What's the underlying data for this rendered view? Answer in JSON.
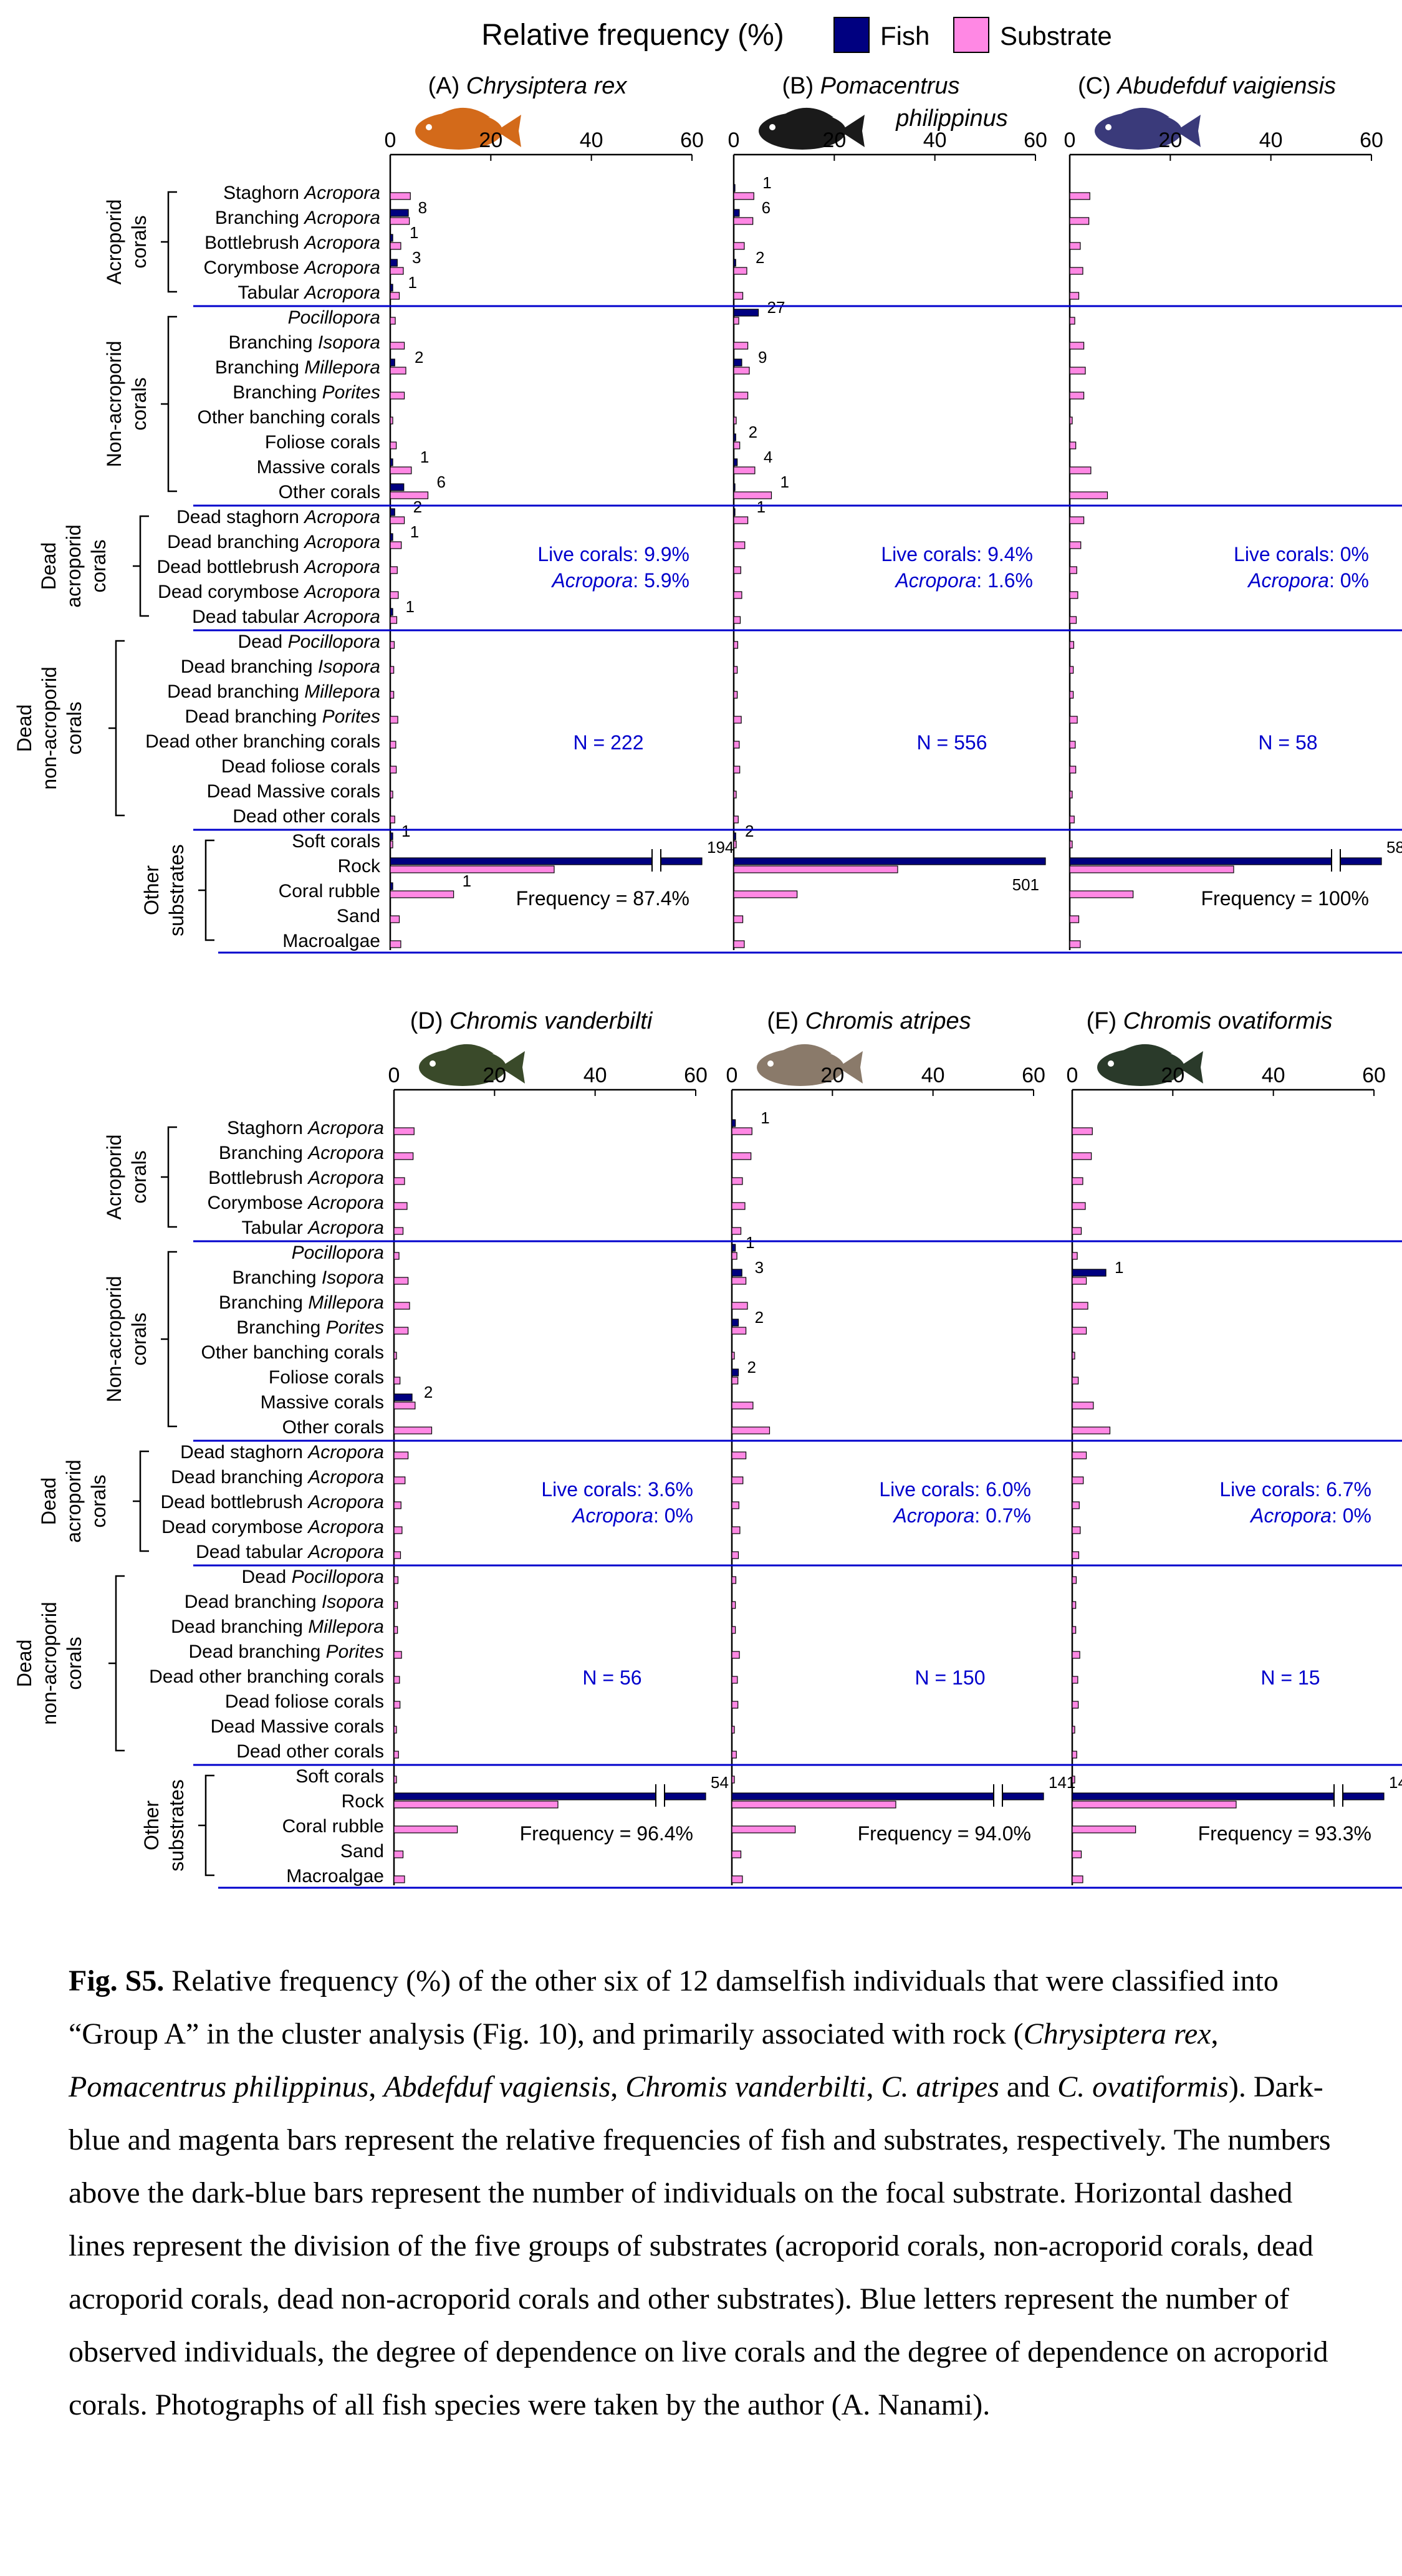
{
  "legend": {
    "title": "Relative frequency (%)",
    "fish_label": "Fish",
    "substrate_label": "Substrate",
    "colors": {
      "fish": "#000080",
      "substrate": "#FF88E4"
    }
  },
  "axis": {
    "ticks": [
      "0",
      "20",
      "40",
      "60"
    ]
  },
  "substrates": [
    {
      "g": 0,
      "p": [
        {
          "t": "Staghorn "
        },
        {
          "t": "Acropora",
          "i": true
        }
      ]
    },
    {
      "g": 0,
      "p": [
        {
          "t": "Branching "
        },
        {
          "t": "Acropora",
          "i": true
        }
      ]
    },
    {
      "g": 0,
      "p": [
        {
          "t": "Bottlebrush "
        },
        {
          "t": "Acropora",
          "i": true
        }
      ]
    },
    {
      "g": 0,
      "p": [
        {
          "t": "Corymbose "
        },
        {
          "t": "Acropora",
          "i": true
        }
      ]
    },
    {
      "g": 0,
      "p": [
        {
          "t": "Tabular "
        },
        {
          "t": "Acropora",
          "i": true
        }
      ]
    },
    {
      "g": 1,
      "p": [
        {
          "t": "Pocillopora",
          "i": true
        }
      ]
    },
    {
      "g": 1,
      "p": [
        {
          "t": "Branching "
        },
        {
          "t": "Isopora",
          "i": true
        }
      ]
    },
    {
      "g": 1,
      "p": [
        {
          "t": "Branching "
        },
        {
          "t": "Millepora",
          "i": true
        }
      ]
    },
    {
      "g": 1,
      "p": [
        {
          "t": "Branching "
        },
        {
          "t": "Porites",
          "i": true
        }
      ]
    },
    {
      "g": 1,
      "p": [
        {
          "t": "Other banching corals"
        }
      ]
    },
    {
      "g": 1,
      "p": [
        {
          "t": "Foliose corals"
        }
      ]
    },
    {
      "g": 1,
      "p": [
        {
          "t": "Massive corals"
        }
      ]
    },
    {
      "g": 1,
      "p": [
        {
          "t": "Other corals"
        }
      ]
    },
    {
      "g": 2,
      "p": [
        {
          "t": "Dead staghorn "
        },
        {
          "t": "Acropora",
          "i": true
        }
      ]
    },
    {
      "g": 2,
      "p": [
        {
          "t": "Dead branching "
        },
        {
          "t": "Acropora",
          "i": true
        }
      ]
    },
    {
      "g": 2,
      "p": [
        {
          "t": "Dead bottlebrush "
        },
        {
          "t": "Acropora",
          "i": true
        }
      ]
    },
    {
      "g": 2,
      "p": [
        {
          "t": "Dead corymbose "
        },
        {
          "t": "Acropora",
          "i": true
        }
      ]
    },
    {
      "g": 2,
      "p": [
        {
          "t": "Dead tabular "
        },
        {
          "t": "Acropora",
          "i": true
        }
      ]
    },
    {
      "g": 3,
      "p": [
        {
          "t": "Dead "
        },
        {
          "t": "Pocillopora",
          "i": true
        }
      ]
    },
    {
      "g": 3,
      "p": [
        {
          "t": "Dead branching "
        },
        {
          "t": "Isopora",
          "i": true
        }
      ]
    },
    {
      "g": 3,
      "p": [
        {
          "t": "Dead branching "
        },
        {
          "t": "Millepora",
          "i": true
        }
      ]
    },
    {
      "g": 3,
      "p": [
        {
          "t": "Dead branching "
        },
        {
          "t": "Porites",
          "i": true
        }
      ]
    },
    {
      "g": 3,
      "p": [
        {
          "t": "Dead other branching corals"
        }
      ]
    },
    {
      "g": 3,
      "p": [
        {
          "t": "Dead foliose corals"
        }
      ]
    },
    {
      "g": 3,
      "p": [
        {
          "t": "Dead Massive corals"
        }
      ]
    },
    {
      "g": 3,
      "p": [
        {
          "t": "Dead other corals"
        }
      ]
    },
    {
      "g": 4,
      "p": [
        {
          "t": "Soft corals"
        }
      ]
    },
    {
      "g": 4,
      "p": [
        {
          "t": "Rock"
        }
      ]
    },
    {
      "g": 4,
      "p": [
        {
          "t": "Coral rubble"
        }
      ]
    },
    {
      "g": 4,
      "p": [
        {
          "t": "Sand"
        }
      ]
    },
    {
      "g": 4,
      "p": [
        {
          "t": "Macroalgae"
        }
      ]
    }
  ],
  "groups_top": [
    {
      "lines": [
        "Acroporid",
        "corals"
      ]
    },
    {
      "lines": [
        "Non-acroporid",
        "corals"
      ]
    },
    {
      "lines": [
        "Dead",
        "acroporid",
        "corals"
      ]
    },
    {
      "lines": [
        "Dead",
        "non-acroporid",
        "corals"
      ]
    },
    {
      "lines": [
        "Other",
        "substrates"
      ]
    }
  ],
  "groups_bottom": [
    {
      "lines": [
        "Acroporid",
        "corals"
      ]
    },
    {
      "lines": [
        "Non-acroporid",
        "corals"
      ]
    },
    {
      "lines": [
        "Dead",
        "acroporid",
        "corals"
      ]
    },
    {
      "lines": [
        "Dead",
        "non-acroporid",
        "corals"
      ]
    },
    {
      "lines": [
        "Other",
        "substrates"
      ]
    }
  ],
  "chart_data": [
    {
      "type": "bar",
      "title_letter": "(A)",
      "title_lines": [
        "Chrysiptera rex"
      ],
      "fish_color": "#d36a1a",
      "stats": {
        "live": "Live corals: 9.9%",
        "acropora_pct": ": 5.9%",
        "n": "N = 222",
        "frequency": "Frequency = 87.4%"
      },
      "xlim": [
        0,
        60
      ],
      "broken_axis": true,
      "fish": [
        0,
        3.6,
        0.5,
        1.4,
        0.5,
        0,
        0,
        0.9,
        0,
        0,
        0,
        0.5,
        2.7,
        0.9,
        0.5,
        0,
        0,
        0.5,
        0,
        0,
        0,
        0,
        0,
        0,
        0,
        0,
        0.5,
        87.4,
        0.5,
        0,
        0
      ],
      "substrate": [
        4.0,
        3.8,
        2.1,
        2.6,
        1.8,
        1.0,
        2.8,
        3.1,
        2.8,
        0.5,
        1.2,
        4.2,
        7.5,
        2.8,
        2.2,
        1.4,
        1.6,
        1.3,
        0.8,
        0.7,
        0.7,
        1.5,
        1.1,
        1.2,
        0.5,
        0.9,
        0.5,
        32.6,
        12.6,
        1.8,
        2.1
      ],
      "counts": [
        "",
        "8",
        "1",
        "3",
        "1",
        "",
        "",
        "2",
        "",
        "",
        "",
        "1",
        "6",
        "2",
        "1",
        "",
        "",
        "1",
        "",
        "",
        "",
        "",
        "",
        "",
        "",
        "",
        "1",
        "194",
        "1",
        "",
        ""
      ]
    },
    {
      "type": "bar",
      "title_letter": "(B)",
      "title_lines": [
        "Pomacentrus",
        "philippinus"
      ],
      "fish_color": "#1a1a1a",
      "stats": {
        "live": "Live corals: 9.4%",
        "acropora_pct": ": 1.6%",
        "n": "N = 556",
        "frequency": ""
      },
      "xlim": [
        0,
        60
      ],
      "broken_axis": false,
      "fish": [
        0.2,
        1.1,
        0,
        0.4,
        0,
        4.9,
        0,
        1.6,
        0,
        0,
        0.4,
        0.7,
        0.2,
        0.2,
        0,
        0,
        0,
        0,
        0,
        0,
        0,
        0,
        0,
        0,
        0,
        0,
        0.4,
        90.1,
        0,
        0,
        0
      ],
      "substrate": [
        4.0,
        3.8,
        2.1,
        2.6,
        1.8,
        1.0,
        2.8,
        3.1,
        2.8,
        0.5,
        1.2,
        4.2,
        7.5,
        2.8,
        2.2,
        1.4,
        1.6,
        1.3,
        0.8,
        0.7,
        0.7,
        1.5,
        1.1,
        1.2,
        0.5,
        0.9,
        0.5,
        32.6,
        12.6,
        1.8,
        2.1
      ],
      "counts": [
        "1",
        "6",
        "",
        "2",
        "",
        "27",
        "",
        "9",
        "",
        "",
        "2",
        "4",
        "1",
        "1",
        "",
        "",
        "",
        "",
        "",
        "",
        "",
        "",
        "",
        "",
        "",
        "",
        "2",
        "501",
        "",
        "",
        ""
      ]
    },
    {
      "type": "bar",
      "title_letter": "(C)",
      "title_lines": [
        "Abudefduf vaigiensis"
      ],
      "fish_color": "#3a3a7a",
      "stats": {
        "live": "Live corals: 0%",
        "acropora_pct": ": 0%",
        "n": "N = 58",
        "frequency": "Frequency = 100%"
      },
      "xlim": [
        0,
        60
      ],
      "broken_axis": true,
      "fish": [
        0,
        0,
        0,
        0,
        0,
        0,
        0,
        0,
        0,
        0,
        0,
        0,
        0,
        0,
        0,
        0,
        0,
        0,
        0,
        0,
        0,
        0,
        0,
        0,
        0,
        0,
        0,
        100,
        0,
        0,
        0
      ],
      "substrate": [
        4.0,
        3.8,
        2.1,
        2.6,
        1.8,
        1.0,
        2.8,
        3.1,
        2.8,
        0.5,
        1.2,
        4.2,
        7.5,
        2.8,
        2.2,
        1.4,
        1.6,
        1.3,
        0.8,
        0.7,
        0.7,
        1.5,
        1.1,
        1.2,
        0.5,
        0.9,
        0.5,
        32.6,
        12.6,
        1.8,
        2.1
      ],
      "counts": [
        "",
        "",
        "",
        "",
        "",
        "",
        "",
        "",
        "",
        "",
        "",
        "",
        "",
        "",
        "",
        "",
        "",
        "",
        "",
        "",
        "",
        "",
        "",
        "",
        "",
        "",
        "",
        "58",
        "",
        "",
        ""
      ]
    },
    {
      "type": "bar",
      "title_letter": "(D)",
      "title_lines": [
        "Chromis vanderbilti"
      ],
      "fish_color": "#3a4a2a",
      "stats": {
        "live": "Live corals: 3.6%",
        "acropora_pct": ": 0%",
        "n": "N = 56",
        "frequency": "Frequency = 96.4%"
      },
      "xlim": [
        0,
        60
      ],
      "broken_axis": true,
      "fish": [
        0,
        0,
        0,
        0,
        0,
        0,
        0,
        0,
        0,
        0,
        0,
        3.6,
        0,
        0,
        0,
        0,
        0,
        0,
        0,
        0,
        0,
        0,
        0,
        0,
        0,
        0,
        0,
        96.4,
        0,
        0,
        0
      ],
      "substrate": [
        4.0,
        3.8,
        2.1,
        2.6,
        1.8,
        1.0,
        2.8,
        3.1,
        2.8,
        0.5,
        1.2,
        4.2,
        7.5,
        2.8,
        2.2,
        1.4,
        1.6,
        1.3,
        0.8,
        0.7,
        0.7,
        1.5,
        1.1,
        1.2,
        0.5,
        0.9,
        0.5,
        32.6,
        12.6,
        1.8,
        2.1
      ],
      "counts": [
        "",
        "",
        "",
        "",
        "",
        "",
        "",
        "",
        "",
        "",
        "",
        "2",
        "",
        "",
        "",
        "",
        "",
        "",
        "",
        "",
        "",
        "",
        "",
        "",
        "",
        "",
        "",
        "54",
        "",
        "",
        ""
      ]
    },
    {
      "type": "bar",
      "title_letter": "(E)",
      "title_lines": [
        "Chromis atripes"
      ],
      "fish_color": "#8a7a6a",
      "stats": {
        "live": "Live corals: 6.0%",
        "acropora_pct": ": 0.7%",
        "n": "N = 150",
        "frequency": "Frequency = 94.0%"
      },
      "xlim": [
        0,
        60
      ],
      "broken_axis": true,
      "fish": [
        0.7,
        0,
        0,
        0,
        0,
        0.7,
        2.0,
        0,
        1.3,
        0,
        1.3,
        0,
        0,
        0,
        0,
        0,
        0,
        0,
        0,
        0,
        0,
        0,
        0,
        0,
        0,
        0,
        0,
        94.0,
        0,
        0,
        0
      ],
      "substrate": [
        4.0,
        3.8,
        2.1,
        2.6,
        1.8,
        1.0,
        2.8,
        3.1,
        2.8,
        0.5,
        1.2,
        4.2,
        7.5,
        2.8,
        2.2,
        1.4,
        1.6,
        1.3,
        0.8,
        0.7,
        0.7,
        1.5,
        1.1,
        1.2,
        0.5,
        0.9,
        0.5,
        32.6,
        12.6,
        1.8,
        2.1
      ],
      "counts": [
        "1",
        "",
        "",
        "",
        "",
        "1",
        "3",
        "",
        "2",
        "",
        "2",
        "",
        "",
        "",
        "",
        "",
        "",
        "",
        "",
        "",
        "",
        "",
        "",
        "",
        "",
        "",
        "",
        "141",
        "",
        "",
        ""
      ]
    },
    {
      "type": "bar",
      "title_letter": "(F)",
      "title_lines": [
        "Chromis ovatiformis"
      ],
      "fish_color": "#2a3a2a",
      "stats": {
        "live": "Live corals: 6.7%",
        "acropora_pct": ": 0%",
        "n": "N = 15",
        "frequency": "Frequency = 93.3%"
      },
      "xlim": [
        0,
        60
      ],
      "broken_axis": true,
      "fish": [
        0,
        0,
        0,
        0,
        0,
        0,
        6.7,
        0,
        0,
        0,
        0,
        0,
        0,
        0,
        0,
        0,
        0,
        0,
        0,
        0,
        0,
        0,
        0,
        0,
        0,
        0,
        0,
        93.3,
        0,
        0,
        0
      ],
      "substrate": [
        4.0,
        3.8,
        2.1,
        2.6,
        1.8,
        1.0,
        2.8,
        3.1,
        2.8,
        0.5,
        1.2,
        4.2,
        7.5,
        2.8,
        2.2,
        1.4,
        1.6,
        1.3,
        0.8,
        0.7,
        0.7,
        1.5,
        1.1,
        1.2,
        0.5,
        0.9,
        0.5,
        32.6,
        12.6,
        1.8,
        2.1
      ],
      "counts": [
        "",
        "",
        "",
        "",
        "",
        "",
        "1",
        "",
        "",
        "",
        "",
        "",
        "",
        "",
        "",
        "",
        "",
        "",
        "",
        "",
        "",
        "",
        "",
        "",
        "",
        "",
        "",
        "14",
        "",
        "",
        ""
      ]
    }
  ],
  "caption": {
    "label": "Fig. S5.",
    "parts": [
      {
        "t": " Relative frequency (%) of the other six of 12 damselfish individuals that were classified into “Group A” in the cluster analysis (Fig. 10), and primarily associated with rock ("
      },
      {
        "t": "Chrysiptera rex",
        "i": true
      },
      {
        "t": ", "
      },
      {
        "t": "Pomacentrus philippinus",
        "i": true
      },
      {
        "t": ", "
      },
      {
        "t": "Abdefduf vagiensis",
        "i": true
      },
      {
        "t": ", "
      },
      {
        "t": "Chromis vanderbilti",
        "i": true
      },
      {
        "t": ", "
      },
      {
        "t": "C. atripes",
        "i": true
      },
      {
        "t": " and "
      },
      {
        "t": "C. ovatiformis",
        "i": true
      },
      {
        "t": "). Dark-blue and magenta bars represent the relative frequencies of fish and substrates, respectively. The numbers above the dark-blue bars represent the number of individuals on the focal substrate. Horizontal dashed lines represent the division of the five groups of substrates (acroporid corals, non-acroporid corals, dead acroporid corals, dead non-acroporid corals and other substrates). Blue letters represent the number of observed individuals, the degree of dependence on live corals and the degree of dependence on acroporid corals. Photographs of all fish species were taken by the author (A. Nanami)."
      }
    ]
  }
}
